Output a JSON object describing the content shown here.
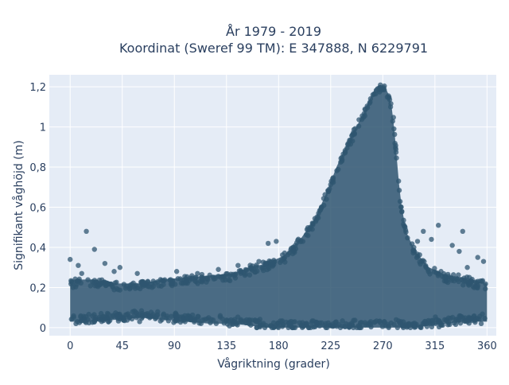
{
  "chart_data": {
    "type": "scatter",
    "title_line1": "År 1979 - 2019",
    "title_line2": "Koordinat (Sweref 99 TM): E 347888, N 6229791",
    "xlabel": "Vågriktning (grader)",
    "ylabel": "Signifikant våghöjd (m)",
    "xlim": [
      -18,
      368
    ],
    "ylim": [
      -0.04,
      1.26
    ],
    "x_ticks": [
      0,
      45,
      90,
      135,
      180,
      225,
      270,
      315,
      360
    ],
    "x_tick_labels": [
      "0",
      "45",
      "90",
      "135",
      "180",
      "225",
      "270",
      "315",
      "360"
    ],
    "y_ticks": [
      0,
      0.2,
      0.4,
      0.6,
      0.8,
      1.0,
      1.2
    ],
    "y_tick_labels": [
      "0",
      "0,2",
      "0,4",
      "0,6",
      "0,8",
      "1",
      "1,2"
    ],
    "grid": true,
    "marker_color": "#2f5570",
    "dense_envelope": [
      {
        "x": 0,
        "ymin": 0.03,
        "ymax": 0.24
      },
      {
        "x": 20,
        "ymin": 0.03,
        "ymax": 0.24
      },
      {
        "x": 40,
        "ymin": 0.04,
        "ymax": 0.22
      },
      {
        "x": 60,
        "ymin": 0.05,
        "ymax": 0.22
      },
      {
        "x": 80,
        "ymin": 0.04,
        "ymax": 0.24
      },
      {
        "x": 100,
        "ymin": 0.03,
        "ymax": 0.25
      },
      {
        "x": 120,
        "ymin": 0.02,
        "ymax": 0.26
      },
      {
        "x": 140,
        "ymin": 0.02,
        "ymax": 0.27
      },
      {
        "x": 155,
        "ymin": 0.01,
        "ymax": 0.3
      },
      {
        "x": 170,
        "ymin": 0.0,
        "ymax": 0.32
      },
      {
        "x": 185,
        "ymin": 0.0,
        "ymax": 0.36
      },
      {
        "x": 200,
        "ymin": 0.0,
        "ymax": 0.45
      },
      {
        "x": 212,
        "ymin": 0.0,
        "ymax": 0.55
      },
      {
        "x": 222,
        "ymin": 0.0,
        "ymax": 0.68
      },
      {
        "x": 230,
        "ymin": 0.0,
        "ymax": 0.8
      },
      {
        "x": 238,
        "ymin": 0.0,
        "ymax": 0.9
      },
      {
        "x": 245,
        "ymin": 0.0,
        "ymax": 0.98
      },
      {
        "x": 252,
        "ymin": 0.0,
        "ymax": 1.05
      },
      {
        "x": 258,
        "ymin": 0.0,
        "ymax": 1.13
      },
      {
        "x": 264,
        "ymin": 0.0,
        "ymax": 1.2
      },
      {
        "x": 268,
        "ymin": 0.0,
        "ymax": 1.21
      },
      {
        "x": 272,
        "ymin": 0.0,
        "ymax": 1.2
      },
      {
        "x": 276,
        "ymin": 0.0,
        "ymax": 1.15
      },
      {
        "x": 279,
        "ymin": 0.0,
        "ymax": 1.05
      },
      {
        "x": 282,
        "ymin": 0.0,
        "ymax": 0.85
      },
      {
        "x": 285,
        "ymin": 0.0,
        "ymax": 0.65
      },
      {
        "x": 290,
        "ymin": 0.0,
        "ymax": 0.48
      },
      {
        "x": 298,
        "ymin": 0.0,
        "ymax": 0.38
      },
      {
        "x": 310,
        "ymin": 0.01,
        "ymax": 0.3
      },
      {
        "x": 325,
        "ymin": 0.02,
        "ymax": 0.26
      },
      {
        "x": 340,
        "ymin": 0.03,
        "ymax": 0.25
      },
      {
        "x": 360,
        "ymin": 0.03,
        "ymax": 0.22
      }
    ],
    "outliers": [
      [
        0,
        0.34
      ],
      [
        7,
        0.31
      ],
      [
        10,
        0.27
      ],
      [
        14,
        0.48
      ],
      [
        21,
        0.39
      ],
      [
        30,
        0.32
      ],
      [
        38,
        0.28
      ],
      [
        43,
        0.3
      ],
      [
        58,
        0.27
      ],
      [
        92,
        0.28
      ],
      [
        110,
        0.27
      ],
      [
        128,
        0.29
      ],
      [
        145,
        0.31
      ],
      [
        163,
        0.33
      ],
      [
        171,
        0.42
      ],
      [
        178,
        0.43
      ],
      [
        300,
        0.43
      ],
      [
        305,
        0.48
      ],
      [
        312,
        0.44
      ],
      [
        318,
        0.51
      ],
      [
        330,
        0.41
      ],
      [
        336,
        0.38
      ],
      [
        339,
        0.48
      ],
      [
        343,
        0.3
      ],
      [
        352,
        0.35
      ],
      [
        357,
        0.33
      ],
      [
        5,
        0.02
      ],
      [
        355,
        0.02
      ],
      [
        8,
        0.025
      ],
      [
        60,
        0.03
      ]
    ]
  }
}
